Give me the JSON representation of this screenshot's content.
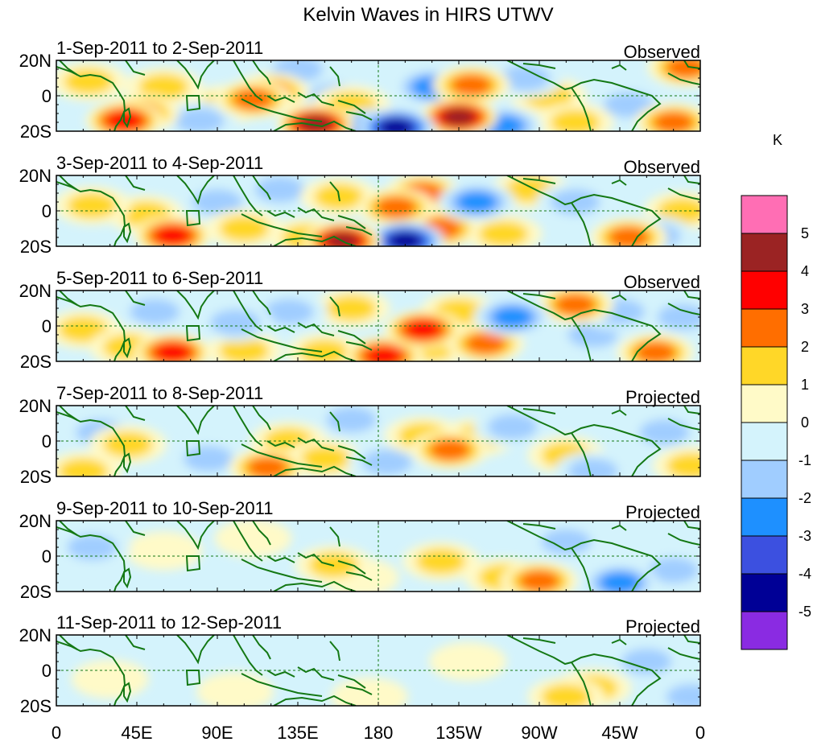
{
  "chart_data": {
    "type": "heatmap",
    "title": "Kelvin Waves in HIRS UTWV",
    "colorbar": {
      "unit": "K",
      "levels": [
        -5,
        -4,
        -3,
        -2,
        -1,
        0,
        1,
        2,
        3,
        4,
        5
      ],
      "level_labels": [
        "-5",
        "-4",
        "-3",
        "-2",
        "-1",
        "0",
        "1",
        "2",
        "3",
        "4",
        "5"
      ],
      "colors": [
        "#8a2be2",
        "#000096",
        "#3c50e0",
        "#1e90ff",
        "#a0cdff",
        "#d4f3fc",
        "#fffac8",
        "#ffd728",
        "#ff6e00",
        "#ff0000",
        "#9b2323",
        "#ff6eb4"
      ]
    },
    "x_ticks": [
      "0",
      "45E",
      "90E",
      "135E",
      "180",
      "135W",
      "90W",
      "45W",
      "0"
    ],
    "y_ticks": [
      "20N",
      "0",
      "20S"
    ],
    "lon_range": [
      0,
      360
    ],
    "lat_range": [
      -20,
      20
    ],
    "panels": [
      {
        "date_range": "1-Sep-2011 to 2-Sep-2011",
        "kind": "Observed",
        "anomalies": [
          {
            "lon": 38,
            "lat": -14,
            "value": 4
          },
          {
            "lon": 47,
            "lat": -10,
            "value": 2.5
          },
          {
            "lon": 60,
            "lat": 5,
            "value": 1.5
          },
          {
            "lon": 18,
            "lat": 8,
            "value": 1.2
          },
          {
            "lon": 80,
            "lat": -14,
            "value": -1.5
          },
          {
            "lon": 95,
            "lat": -5,
            "value": 1.3
          },
          {
            "lon": 110,
            "lat": -2,
            "value": 2.5
          },
          {
            "lon": 120,
            "lat": 2,
            "value": 2.3
          },
          {
            "lon": 135,
            "lat": 15,
            "value": -1.5
          },
          {
            "lon": 145,
            "lat": -16,
            "value": 4.5
          },
          {
            "lon": 155,
            "lat": 0,
            "value": -1.3
          },
          {
            "lon": 165,
            "lat": -5,
            "value": 1.8
          },
          {
            "lon": 178,
            "lat": -18,
            "value": -4
          },
          {
            "lon": 190,
            "lat": -18,
            "value": -4.3
          },
          {
            "lon": 210,
            "lat": 5,
            "value": -2.2
          },
          {
            "lon": 225,
            "lat": -12,
            "value": 4.2
          },
          {
            "lon": 232,
            "lat": 6,
            "value": 2.5
          },
          {
            "lon": 250,
            "lat": -17,
            "value": -3
          },
          {
            "lon": 262,
            "lat": 10,
            "value": -2
          },
          {
            "lon": 275,
            "lat": 0,
            "value": 1.4
          },
          {
            "lon": 290,
            "lat": -15,
            "value": 1.8
          },
          {
            "lon": 320,
            "lat": -5,
            "value": -1.5
          },
          {
            "lon": 345,
            "lat": -15,
            "value": 2.8
          },
          {
            "lon": 352,
            "lat": 16,
            "value": 3
          }
        ]
      },
      {
        "date_range": "3-Sep-2011 to 4-Sep-2011",
        "kind": "Observed",
        "anomalies": [
          {
            "lon": 20,
            "lat": 3,
            "value": 1.4
          },
          {
            "lon": 50,
            "lat": -2,
            "value": 1.2
          },
          {
            "lon": 65,
            "lat": -14,
            "value": 4
          },
          {
            "lon": 90,
            "lat": 5,
            "value": -1.5
          },
          {
            "lon": 105,
            "lat": -10,
            "value": 1.5
          },
          {
            "lon": 125,
            "lat": 12,
            "value": -1.6
          },
          {
            "lon": 140,
            "lat": -15,
            "value": 1.2
          },
          {
            "lon": 160,
            "lat": -17,
            "value": 4.5
          },
          {
            "lon": 158,
            "lat": 8,
            "value": 1.6
          },
          {
            "lon": 195,
            "lat": -17,
            "value": -4.3
          },
          {
            "lon": 190,
            "lat": 2,
            "value": 3
          },
          {
            "lon": 205,
            "lat": 10,
            "value": 2.3
          },
          {
            "lon": 215,
            "lat": -10,
            "value": 2.2
          },
          {
            "lon": 235,
            "lat": 5,
            "value": -2.5
          },
          {
            "lon": 250,
            "lat": -13,
            "value": 1.5
          },
          {
            "lon": 265,
            "lat": 12,
            "value": 1.4
          },
          {
            "lon": 290,
            "lat": 5,
            "value": -1.8
          },
          {
            "lon": 320,
            "lat": -15,
            "value": 2.5
          },
          {
            "lon": 335,
            "lat": -14,
            "value": -2
          },
          {
            "lon": 350,
            "lat": 0,
            "value": 1.2
          }
        ]
      },
      {
        "date_range": "5-Sep-2011 to 6-Sep-2011",
        "kind": "Observed",
        "anomalies": [
          {
            "lon": 15,
            "lat": -2,
            "value": 1.2
          },
          {
            "lon": 40,
            "lat": -12,
            "value": 1.4
          },
          {
            "lon": 65,
            "lat": -15,
            "value": 4
          },
          {
            "lon": 55,
            "lat": 8,
            "value": -1.2
          },
          {
            "lon": 100,
            "lat": 2,
            "value": -1.4
          },
          {
            "lon": 105,
            "lat": -14,
            "value": 1.3
          },
          {
            "lon": 130,
            "lat": 8,
            "value": -1.3
          },
          {
            "lon": 150,
            "lat": -15,
            "value": 1.3
          },
          {
            "lon": 165,
            "lat": 10,
            "value": 1.2
          },
          {
            "lon": 183,
            "lat": -17,
            "value": 3.2
          },
          {
            "lon": 205,
            "lat": -2,
            "value": 3.2
          },
          {
            "lon": 210,
            "lat": -12,
            "value": 1.4
          },
          {
            "lon": 225,
            "lat": 8,
            "value": 1.3
          },
          {
            "lon": 240,
            "lat": -10,
            "value": 2.3
          },
          {
            "lon": 255,
            "lat": 5,
            "value": -2.3
          },
          {
            "lon": 290,
            "lat": 12,
            "value": 2.2
          },
          {
            "lon": 300,
            "lat": -5,
            "value": -1.2
          },
          {
            "lon": 315,
            "lat": 8,
            "value": -1.3
          },
          {
            "lon": 335,
            "lat": -15,
            "value": 2.3
          },
          {
            "lon": 350,
            "lat": 5,
            "value": -1.2
          }
        ]
      },
      {
        "date_range": "7-Sep-2011 to 8-Sep-2011",
        "kind": "Projected",
        "anomalies": [
          {
            "lon": 25,
            "lat": 5,
            "value": -1.1
          },
          {
            "lon": 40,
            "lat": -2,
            "value": 1.3
          },
          {
            "lon": 15,
            "lat": -17,
            "value": 1.3
          },
          {
            "lon": 85,
            "lat": -10,
            "value": -1.2
          },
          {
            "lon": 118,
            "lat": -15,
            "value": 2.4
          },
          {
            "lon": 130,
            "lat": 0,
            "value": 1.2
          },
          {
            "lon": 150,
            "lat": -10,
            "value": 1.2
          },
          {
            "lon": 165,
            "lat": 12,
            "value": -1.1
          },
          {
            "lon": 185,
            "lat": -12,
            "value": -1.2
          },
          {
            "lon": 205,
            "lat": 3,
            "value": 1.4
          },
          {
            "lon": 220,
            "lat": -5,
            "value": 2.3
          },
          {
            "lon": 235,
            "lat": 2,
            "value": 1.2
          },
          {
            "lon": 255,
            "lat": 8,
            "value": -1.4
          },
          {
            "lon": 285,
            "lat": -8,
            "value": 1.4
          },
          {
            "lon": 300,
            "lat": -17,
            "value": -1.5
          },
          {
            "lon": 340,
            "lat": 5,
            "value": -1.1
          },
          {
            "lon": 355,
            "lat": -14,
            "value": 1.4
          }
        ]
      },
      {
        "date_range": "9-Sep-2011 to 10-Sep-2011",
        "kind": "Projected",
        "anomalies": [
          {
            "lon": 20,
            "lat": 5,
            "value": -1.1
          },
          {
            "lon": 60,
            "lat": 3,
            "value": 0.8
          },
          {
            "lon": 110,
            "lat": 10,
            "value": 0.7
          },
          {
            "lon": 155,
            "lat": -5,
            "value": 1.2
          },
          {
            "lon": 170,
            "lat": -12,
            "value": 0.8
          },
          {
            "lon": 215,
            "lat": -3,
            "value": 1.1
          },
          {
            "lon": 250,
            "lat": -12,
            "value": 1.3
          },
          {
            "lon": 270,
            "lat": -14,
            "value": 2.1
          },
          {
            "lon": 285,
            "lat": 8,
            "value": -1.2
          },
          {
            "lon": 315,
            "lat": -15,
            "value": -2.5
          },
          {
            "lon": 345,
            "lat": -8,
            "value": -1.2
          }
        ]
      },
      {
        "date_range": "11-Sep-2011 to 12-Sep-2011",
        "kind": "Projected",
        "anomalies": [
          {
            "lon": 30,
            "lat": -5,
            "value": 0.8
          },
          {
            "lon": 100,
            "lat": -12,
            "value": 0.7
          },
          {
            "lon": 175,
            "lat": -15,
            "value": 0.7
          },
          {
            "lon": 230,
            "lat": 5,
            "value": 0.6
          },
          {
            "lon": 285,
            "lat": -15,
            "value": 1.8
          },
          {
            "lon": 300,
            "lat": -10,
            "value": 1.2
          },
          {
            "lon": 330,
            "lat": 5,
            "value": -1.1
          },
          {
            "lon": 355,
            "lat": -15,
            "value": -1.2
          }
        ]
      }
    ]
  }
}
